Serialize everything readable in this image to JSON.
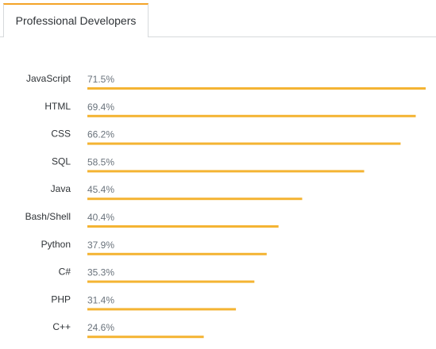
{
  "tabs": [
    {
      "label": "Professional Developers",
      "active": true
    }
  ],
  "colors": {
    "bar": "#f4b433",
    "label": "#2f3337",
    "value": "#6a737c",
    "tab_accent": "#f4a327"
  },
  "chart_data": {
    "type": "bar",
    "orientation": "horizontal",
    "categories": [
      "JavaScript",
      "HTML",
      "CSS",
      "SQL",
      "Java",
      "Bash/Shell",
      "Python",
      "C#",
      "PHP",
      "C++"
    ],
    "values": [
      71.5,
      69.4,
      66.2,
      58.5,
      45.4,
      40.4,
      37.9,
      35.3,
      31.4,
      24.6
    ],
    "value_labels": [
      "71.5%",
      "69.4%",
      "66.2%",
      "58.5%",
      "45.4%",
      "40.4%",
      "37.9%",
      "35.3%",
      "31.4%",
      "24.6%"
    ],
    "unit": "%",
    "xlim": [
      0,
      71.5
    ],
    "title": "",
    "xlabel": "",
    "ylabel": "",
    "grid": false,
    "legend": "none"
  }
}
